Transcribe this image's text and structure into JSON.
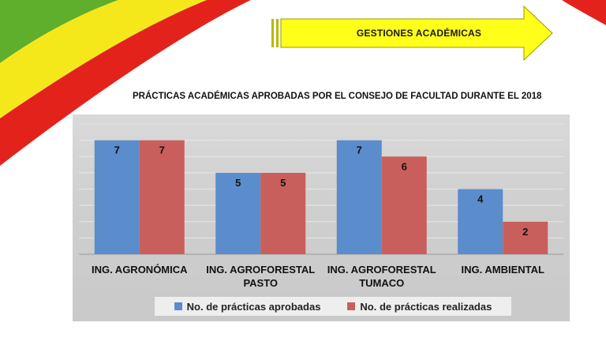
{
  "header": {
    "label": "GESTIONES ACADÉMICAS"
  },
  "colors": {
    "aprobadas": "#5b8ccc",
    "realizadas": "#c95f5c",
    "arrow": "#ffff1a",
    "flag_green": "#5fae2c",
    "flag_yellow": "#f4e81b",
    "flag_red": "#e4221c"
  },
  "chart_data": {
    "type": "bar",
    "title": "PRÁCTICAS ACADÉMICAS APROBADAS POR EL CONSEJO DE FACULTAD DURANTE EL 2018",
    "categories": [
      "ING. AGRONÓMICA",
      "ING. AGROFORESTAL PASTO",
      "ING. AGROFORESTAL TUMACO",
      "ING. AMBIENTAL"
    ],
    "series": [
      {
        "name": "No. de prácticas aprobadas",
        "values": [
          7,
          5,
          7,
          4
        ],
        "color": "#5b8ccc"
      },
      {
        "name": "No. de  prácticas realizadas",
        "values": [
          7,
          5,
          6,
          2
        ],
        "color": "#c95f5c"
      }
    ],
    "ylim": [
      0,
      8
    ],
    "grid": true,
    "legend": "bottom"
  }
}
